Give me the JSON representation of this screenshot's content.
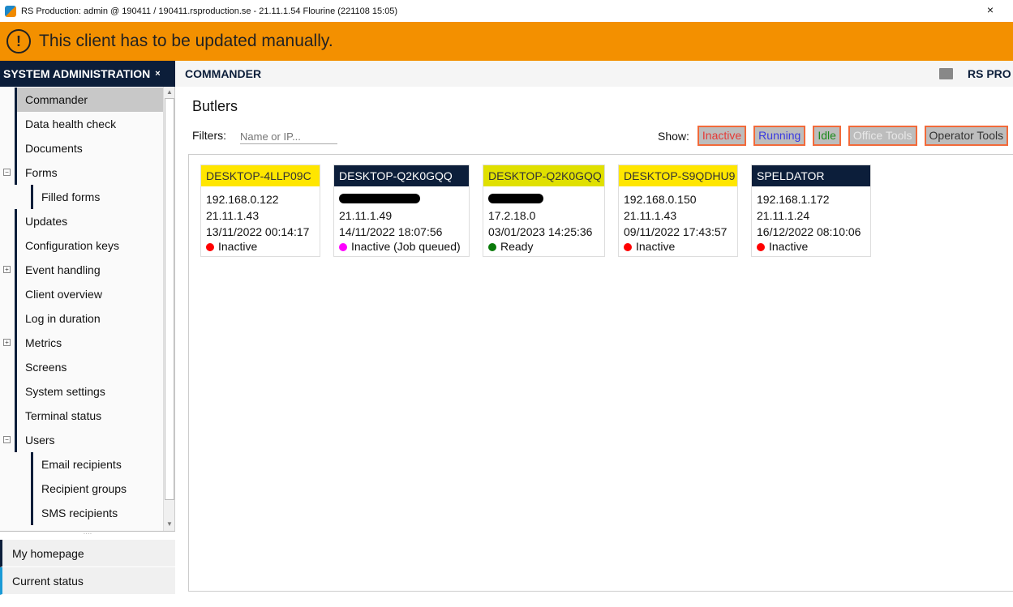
{
  "window": {
    "title": "RS Production: admin @ 190411 / 190411.rsproduction.se - 21.11.1.54 Flourine (221108 15:05)",
    "close": "×"
  },
  "banner": {
    "icon": "!",
    "message": "This client has to be updated manually."
  },
  "sidebar": {
    "title": "SYSTEM ADMINISTRATION",
    "close": "×",
    "items": [
      {
        "label": "Commander",
        "active": true
      },
      {
        "label": "Data health check"
      },
      {
        "label": "Documents"
      },
      {
        "label": "Forms",
        "expander": "−"
      },
      {
        "label": "Filled forms",
        "child": true
      },
      {
        "label": "Updates"
      },
      {
        "label": "Configuration keys"
      },
      {
        "label": "Event handling",
        "expander": "+"
      },
      {
        "label": "Client overview"
      },
      {
        "label": "Log in duration"
      },
      {
        "label": "Metrics",
        "expander": "+"
      },
      {
        "label": "Screens"
      },
      {
        "label": "System settings"
      },
      {
        "label": "Terminal status"
      },
      {
        "label": "Users",
        "expander": "−"
      },
      {
        "label": "Email recipients",
        "child": true
      },
      {
        "label": "Recipient groups",
        "child": true
      },
      {
        "label": "SMS recipients",
        "child": true
      }
    ],
    "bottom": [
      "My homepage",
      "Current status"
    ]
  },
  "header": {
    "title": "COMMANDER",
    "brand": "RS PRO"
  },
  "main": {
    "title": "Butlers",
    "filters_label": "Filters:",
    "filter_placeholder": "Name or IP...",
    "show_label": "Show:",
    "chips": [
      {
        "label": "Inactive",
        "color": "#e53935"
      },
      {
        "label": "Running",
        "color": "#3a3ae0"
      },
      {
        "label": "Idle",
        "color": "#1a8a1a"
      },
      {
        "label": "Office Tools",
        "color": "#e8e8e8"
      },
      {
        "label": "Operator Tools",
        "color": "#333333"
      }
    ],
    "cards": [
      {
        "name": "DESKTOP-4LLP09C",
        "head_bg": "#ffe600",
        "head_color": "#333",
        "ip": "192.168.0.122",
        "version": "21.11.1.43",
        "time": "13/11/2022 00:14:17",
        "status": "Inactive",
        "status_color": "#ff0000"
      },
      {
        "name": "DESKTOP-Q2K0GQQ",
        "head_bg": "#0c1e3a",
        "head_color": "#fff",
        "ip": "",
        "version": "21.11.1.49",
        "time": "14/11/2022 18:07:56",
        "status": "Inactive (Job queued)",
        "status_color": "#ff00ff"
      },
      {
        "name": "DESKTOP-Q2K0GQQ",
        "head_bg": "#e0e000",
        "head_color": "#333",
        "ip": "",
        "version": "17.2.18.0",
        "time": "03/01/2023 14:25:36",
        "status": "Ready",
        "status_color": "#0a7a0a"
      },
      {
        "name": "DESKTOP-S9QDHU9",
        "head_bg": "#ffe600",
        "head_color": "#333",
        "ip": "192.168.0.150",
        "version": "21.11.1.43",
        "time": "09/11/2022 17:43:57",
        "status": "Inactive",
        "status_color": "#ff0000"
      },
      {
        "name": "SPELDATOR",
        "head_bg": "#0c1e3a",
        "head_color": "#fff",
        "ip": "192.168.1.172",
        "version": "21.11.1.24",
        "time": "16/12/2022 08:10:06",
        "status": "Inactive",
        "status_color": "#ff0000"
      }
    ]
  }
}
